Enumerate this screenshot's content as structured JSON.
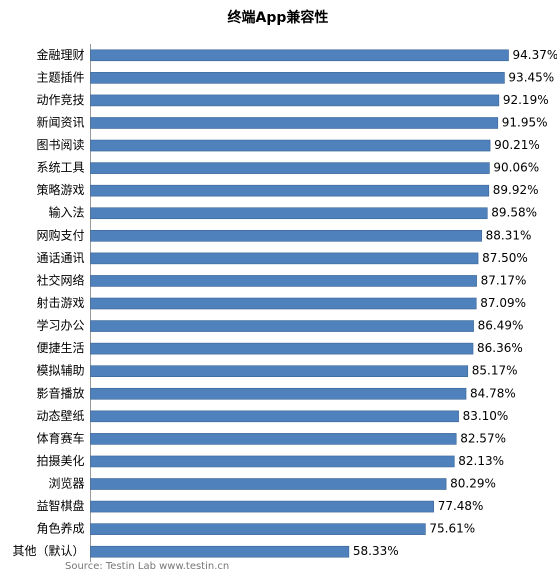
{
  "chart_data": {
    "type": "bar",
    "orientation": "horizontal",
    "title": "终端App兼容性",
    "categories": [
      "金融理财",
      "主题插件",
      "动作竞技",
      "新闻资讯",
      "图书阅读",
      "系统工具",
      "策略游戏",
      "输入法",
      "网购支付",
      "通话通讯",
      "社交网络",
      "射击游戏",
      "学习办公",
      "便捷生活",
      "模拟辅助",
      "影音播放",
      "动态壁纸",
      "体育赛车",
      "拍摄美化",
      "浏览器",
      "益智棋盘",
      "角色养成",
      "其他（默认）"
    ],
    "values": [
      94.37,
      93.45,
      92.19,
      91.95,
      90.21,
      90.06,
      89.92,
      89.58,
      88.31,
      87.5,
      87.17,
      87.09,
      86.49,
      86.36,
      85.17,
      84.78,
      83.1,
      82.57,
      82.13,
      80.29,
      77.48,
      75.61,
      58.33
    ],
    "value_labels": [
      "94.37%",
      "93.45%",
      "92.19%",
      "91.95%",
      "90.21%",
      "90.06%",
      "89.92%",
      "89.58%",
      "88.31%",
      "87.50%",
      "87.17%",
      "87.09%",
      "86.49%",
      "86.36%",
      "85.17%",
      "84.78%",
      "83.10%",
      "82.57%",
      "82.13%",
      "80.29%",
      "77.48%",
      "75.61%",
      "58.33%"
    ],
    "color": "#4f81bd",
    "source": "Source: Testin Lab    www.testin.cn"
  }
}
